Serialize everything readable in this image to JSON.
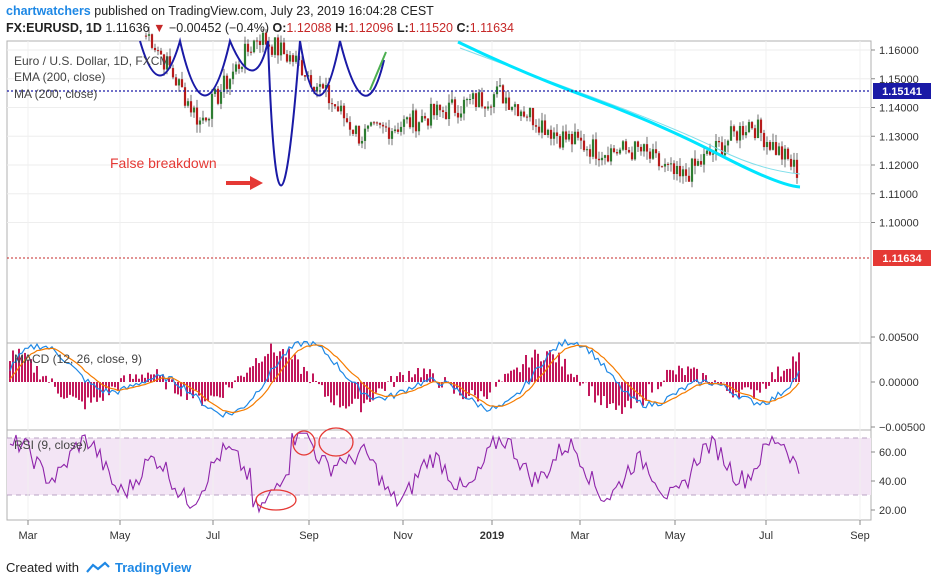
{
  "header": {
    "brand": "chartwatchers",
    "published": " published on TradingView.com, July 23, 2019 16:04:28 CEST"
  },
  "quote": {
    "symbol": "FX:EURUSD, 1D",
    "last": "1.11636",
    "arrow": "▼",
    "change": "−0.00452 (−0.4%)",
    "o_label": "O:",
    "o": "1.12088",
    "h_label": "H:",
    "h": "1.12096",
    "l_label": "L:",
    "l": "1.11520",
    "c_label": "C:",
    "c": "1.11634"
  },
  "legend": {
    "instrument": "Euro / U.S. Dollar, 1D, FXCM",
    "ema": "EMA (200, close)",
    "ma": "MA (200, close)"
  },
  "annotation": {
    "text": "False breakdown"
  },
  "price_axis": {
    "ticks": [
      "1.16000",
      "1.15000",
      "1.14000",
      "1.13000",
      "1.12000",
      "1.11000",
      "1.10000"
    ],
    "level_label": "1.15141",
    "last_label": "1.11634"
  },
  "macd": {
    "label": "MACD (12, 26, close, 9)",
    "ticks": [
      "0.00500",
      "0.00000",
      "−0.00500"
    ]
  },
  "rsi": {
    "label": "RSI (9, close)",
    "ticks": [
      "60.00",
      "40.00",
      "20.00"
    ]
  },
  "time_axis": [
    "Mar",
    "May",
    "Jul",
    "Sep",
    "Nov",
    "2019",
    "Mar",
    "May",
    "Jul",
    "Sep"
  ],
  "footer": {
    "created": "Created with",
    "brand": "TradingView"
  },
  "colors": {
    "up": "#2e7d32",
    "down": "#b71c1c",
    "ema": "#80deea",
    "ma": "#00e5ff",
    "pattern": "#1a1aa6",
    "arrow": "#e53935",
    "macd": "#1e88e5",
    "signal": "#f57c00",
    "hist": "#c2185b",
    "rsi": "#8e24aa",
    "rsi_band": "#f3e5f5"
  },
  "chart_data": {
    "type": "candlestick",
    "symbol": "EURUSD",
    "interval": "1D",
    "price_range": [
      1.1,
      1.16
    ],
    "level": 1.15141,
    "last": 1.11634,
    "price_path": [
      {
        "x": "Jul 2018",
        "y": 1.165
      },
      {
        "x": "Aug 2018",
        "y": 1.135
      },
      {
        "x": "Sep 2018",
        "y": 1.165
      },
      {
        "x": "Oct 2018",
        "y": 1.155
      },
      {
        "x": "Nov 2018",
        "y": 1.13
      },
      {
        "x": "Dec 2018",
        "y": 1.135
      },
      {
        "x": "Jan 2019",
        "y": 1.145
      },
      {
        "x": "Feb 2019",
        "y": 1.13
      },
      {
        "x": "Mar 2019",
        "y": 1.125
      },
      {
        "x": "Apr 2019",
        "y": 1.125
      },
      {
        "x": "May 2019",
        "y": 1.115
      },
      {
        "x": "Jun 2019",
        "y": 1.135
      },
      {
        "x": "Jul 2019",
        "y": 1.117
      }
    ],
    "macd_range": [
      -0.0065,
      0.0055
    ],
    "rsi_range": [
      15,
      75
    ],
    "rsi_bands": [
      30,
      70
    ]
  }
}
